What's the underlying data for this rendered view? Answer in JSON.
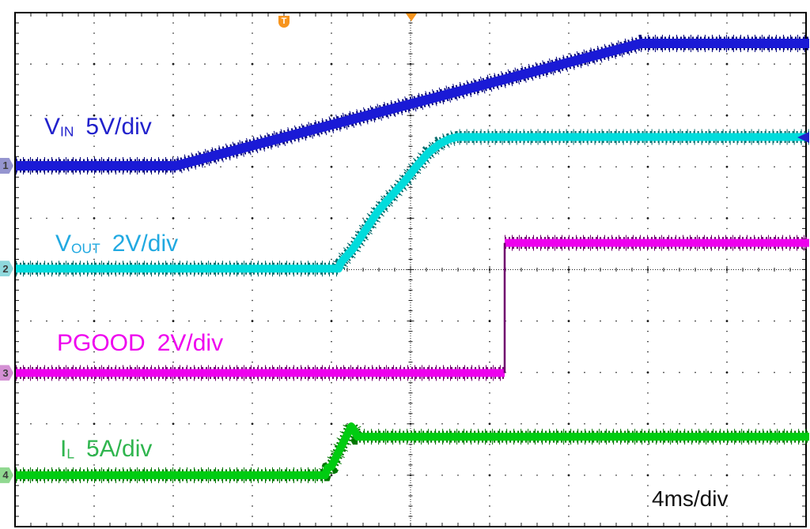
{
  "style_hints": {
    "background": "#ffffff",
    "graticule_color": "#1b1b1b",
    "border_color": "#000000"
  },
  "trigger": {
    "badge_label": "T",
    "color": "#F7941D"
  },
  "chart_data": {
    "type": "line",
    "title": "",
    "x_axis": {
      "per_div_label": "4ms/div",
      "divisions": 10,
      "minor_per_major": 5,
      "gridlines": "dotted"
    },
    "y_axis": {
      "divisions": 10,
      "minor_per_major": 5,
      "gridlines": "dotted"
    },
    "legend_position": "labels-on-plot",
    "series": [
      {
        "channel": "1",
        "name": "VIN",
        "label_main": "V",
        "label_sub": "IN",
        "label_scale": "5V/div",
        "label_color": "#2222CC",
        "color": "#1A1AD6",
        "noise_color": "#00007A",
        "trace_width": 12,
        "badge_fill": "#9595CF",
        "points_div": [
          [
            0.01,
            2.98
          ],
          [
            2.03,
            2.98
          ],
          [
            7.91,
            0.6
          ],
          [
            10.04,
            0.6
          ]
        ]
      },
      {
        "channel": "2",
        "name": "VOUT",
        "label_main": "V",
        "label_sub": "OUT",
        "label_scale": "2V/div",
        "label_color": "#21A9E1",
        "color": "#00DCDC",
        "noise_color": "#006A6A",
        "trace_width": 10,
        "badge_fill": "#8FD8DC",
        "points_div": [
          [
            0.01,
            4.98
          ],
          [
            4.09,
            4.98
          ],
          [
            4.12,
            4.86
          ],
          [
            4.27,
            4.6
          ],
          [
            4.43,
            4.23
          ],
          [
            4.59,
            3.86
          ],
          [
            4.75,
            3.58
          ],
          [
            4.91,
            3.31
          ],
          [
            5.07,
            3.0
          ],
          [
            5.23,
            2.72
          ],
          [
            5.37,
            2.55
          ],
          [
            5.49,
            2.46
          ],
          [
            5.59,
            2.42
          ],
          [
            10.04,
            2.42
          ]
        ]
      },
      {
        "channel": "3",
        "name": "PGOOD",
        "label_main": "PGOOD",
        "label_sub": "",
        "label_scale": "2V/div",
        "label_color": "#EE00EE",
        "color": "#EE00EE",
        "noise_color": "#70006E",
        "trace_width": 10,
        "badge_fill": "#D490D4",
        "points_div": [
          [
            0.01,
            7.01
          ],
          [
            6.19,
            7.01
          ],
          [
            6.19,
            4.48
          ],
          [
            10.04,
            4.48
          ]
        ]
      },
      {
        "channel": "4",
        "name": "IL",
        "label_main": "I",
        "label_sub": "L",
        "label_scale": "5A/div",
        "label_color": "#2FB54E",
        "color": "#00CC11",
        "noise_color": "#007700",
        "trace_width": 10,
        "badge_fill": "#90D890",
        "points_div": [
          [
            0.01,
            9.0
          ],
          [
            3.92,
            9.0
          ],
          [
            3.95,
            8.86
          ],
          [
            4.0,
            8.83
          ],
          [
            4.25,
            8.05
          ],
          [
            4.28,
            8.11
          ],
          [
            4.33,
            8.25
          ],
          [
            10.04,
            8.25
          ]
        ]
      }
    ]
  }
}
